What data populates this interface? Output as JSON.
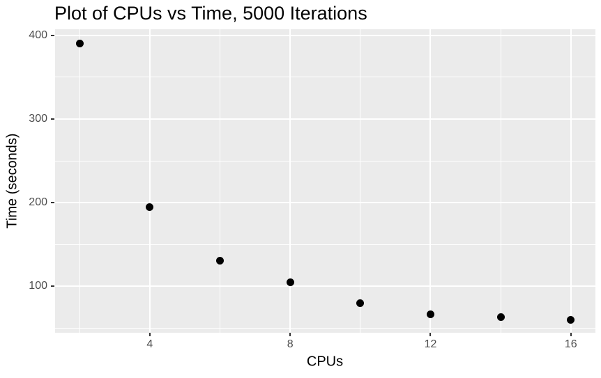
{
  "chart_data": {
    "type": "scatter",
    "title": "Plot of CPUs vs Time, 5000 Iterations",
    "xlabel": "CPUs",
    "ylabel": "Time (seconds)",
    "x": [
      2,
      4,
      6,
      8,
      10,
      12,
      14,
      16
    ],
    "y": [
      390,
      195,
      131,
      105,
      80,
      67,
      63,
      60
    ],
    "xlim": [
      1.3,
      16.7
    ],
    "ylim": [
      44.6,
      407.4
    ],
    "x_major_ticks": [
      4,
      8,
      12,
      16
    ],
    "x_tick_labels": [
      "4",
      "8",
      "12",
      "16"
    ],
    "x_minor_gridlines": [
      2,
      6,
      10,
      14
    ],
    "y_major_ticks": [
      100,
      200,
      300,
      400
    ],
    "y_tick_labels": [
      "100",
      "200",
      "300",
      "400"
    ],
    "y_minor_gridlines": [
      50,
      150,
      250,
      350
    ],
    "grid": "on",
    "legend": "none",
    "theme": "ggplot2-gray",
    "colors": {
      "page_background": "#FFFFFF",
      "panel_background": "#EBEBEB",
      "gridline": "#FFFFFF",
      "point": "#000000",
      "title_text": "#000000",
      "axis_title_text": "#000000",
      "tick_label": "#4D4D4D",
      "tick_mark": "#333333"
    }
  }
}
